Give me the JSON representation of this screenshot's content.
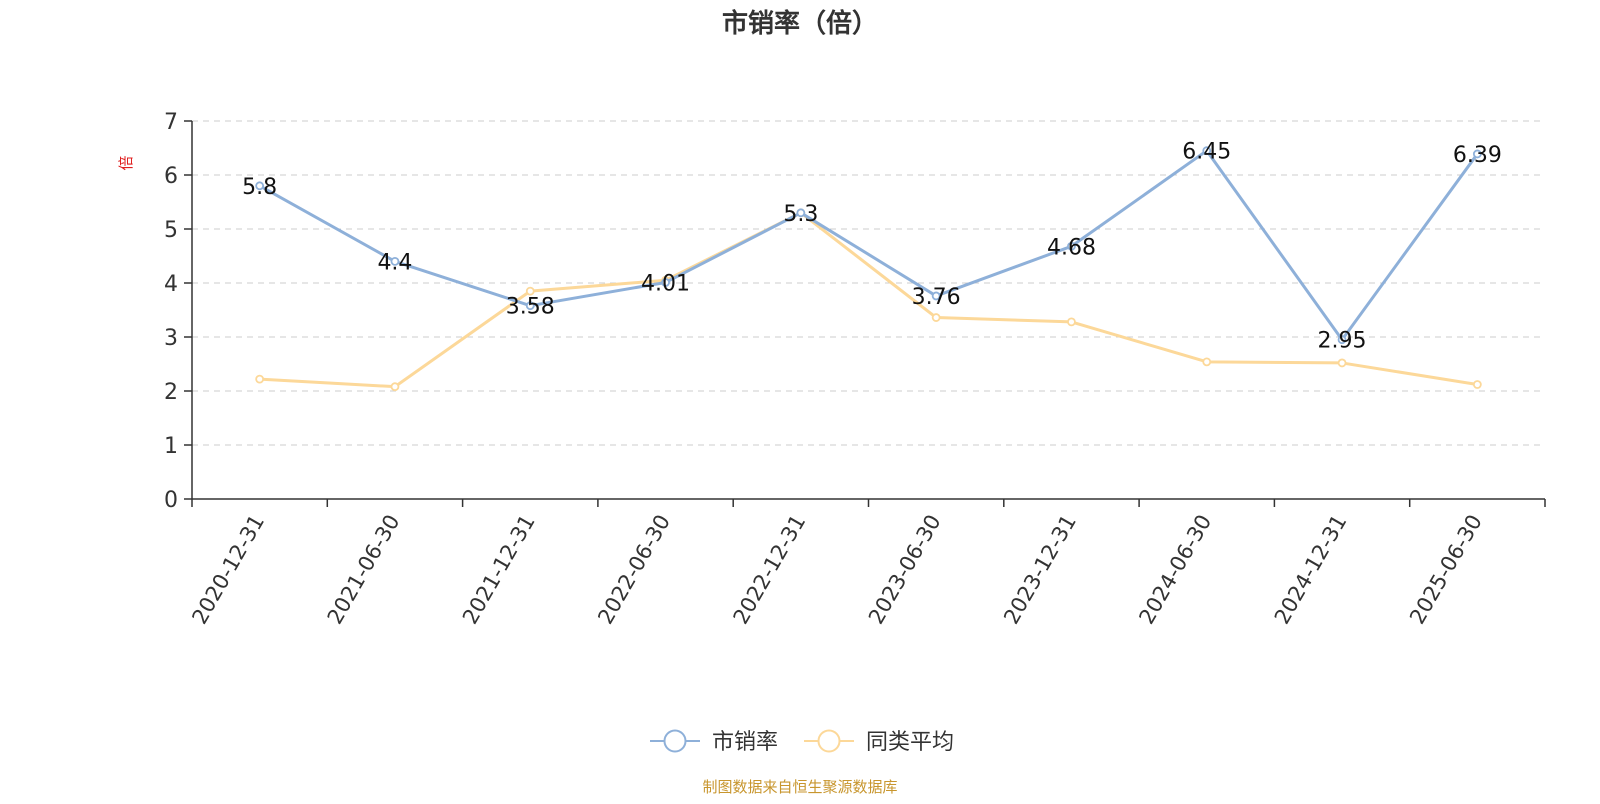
{
  "chart_data": {
    "type": "line",
    "title": "市销率（倍）",
    "ylabel": "倍",
    "xlabel": "",
    "ylim": [
      0,
      7
    ],
    "yticks": [
      0,
      1,
      2,
      3,
      4,
      5,
      6,
      7
    ],
    "grid": true,
    "legend_position": "bottom-center",
    "categories": [
      "2020-12-31",
      "2021-06-30",
      "2021-12-31",
      "2022-06-30",
      "2022-12-31",
      "2023-06-30",
      "2023-12-31",
      "2024-06-30",
      "2024-12-31",
      "2025-06-30"
    ],
    "series": [
      {
        "name": "市销率",
        "color": "#8eb0d9",
        "values": [
          5.8,
          4.4,
          3.58,
          4.01,
          5.3,
          3.76,
          4.68,
          6.45,
          2.95,
          6.39
        ],
        "labels": [
          "5.8",
          "4.4",
          "3.58",
          "4.01",
          "5.3",
          "3.76",
          "4.68",
          "6.45",
          "2.95",
          "6.39"
        ]
      },
      {
        "name": "同类平均",
        "color": "#fcd899",
        "values": [
          2.22,
          2.08,
          3.85,
          4.05,
          5.3,
          3.36,
          3.28,
          2.54,
          2.52,
          2.12
        ]
      }
    ],
    "source": "制图数据来自恒生聚源数据库",
    "colors": {
      "title": "#333333",
      "ylabel": "#e02020",
      "source": "#c8962e",
      "axis": "#333333",
      "grid": "#cccccc"
    }
  }
}
